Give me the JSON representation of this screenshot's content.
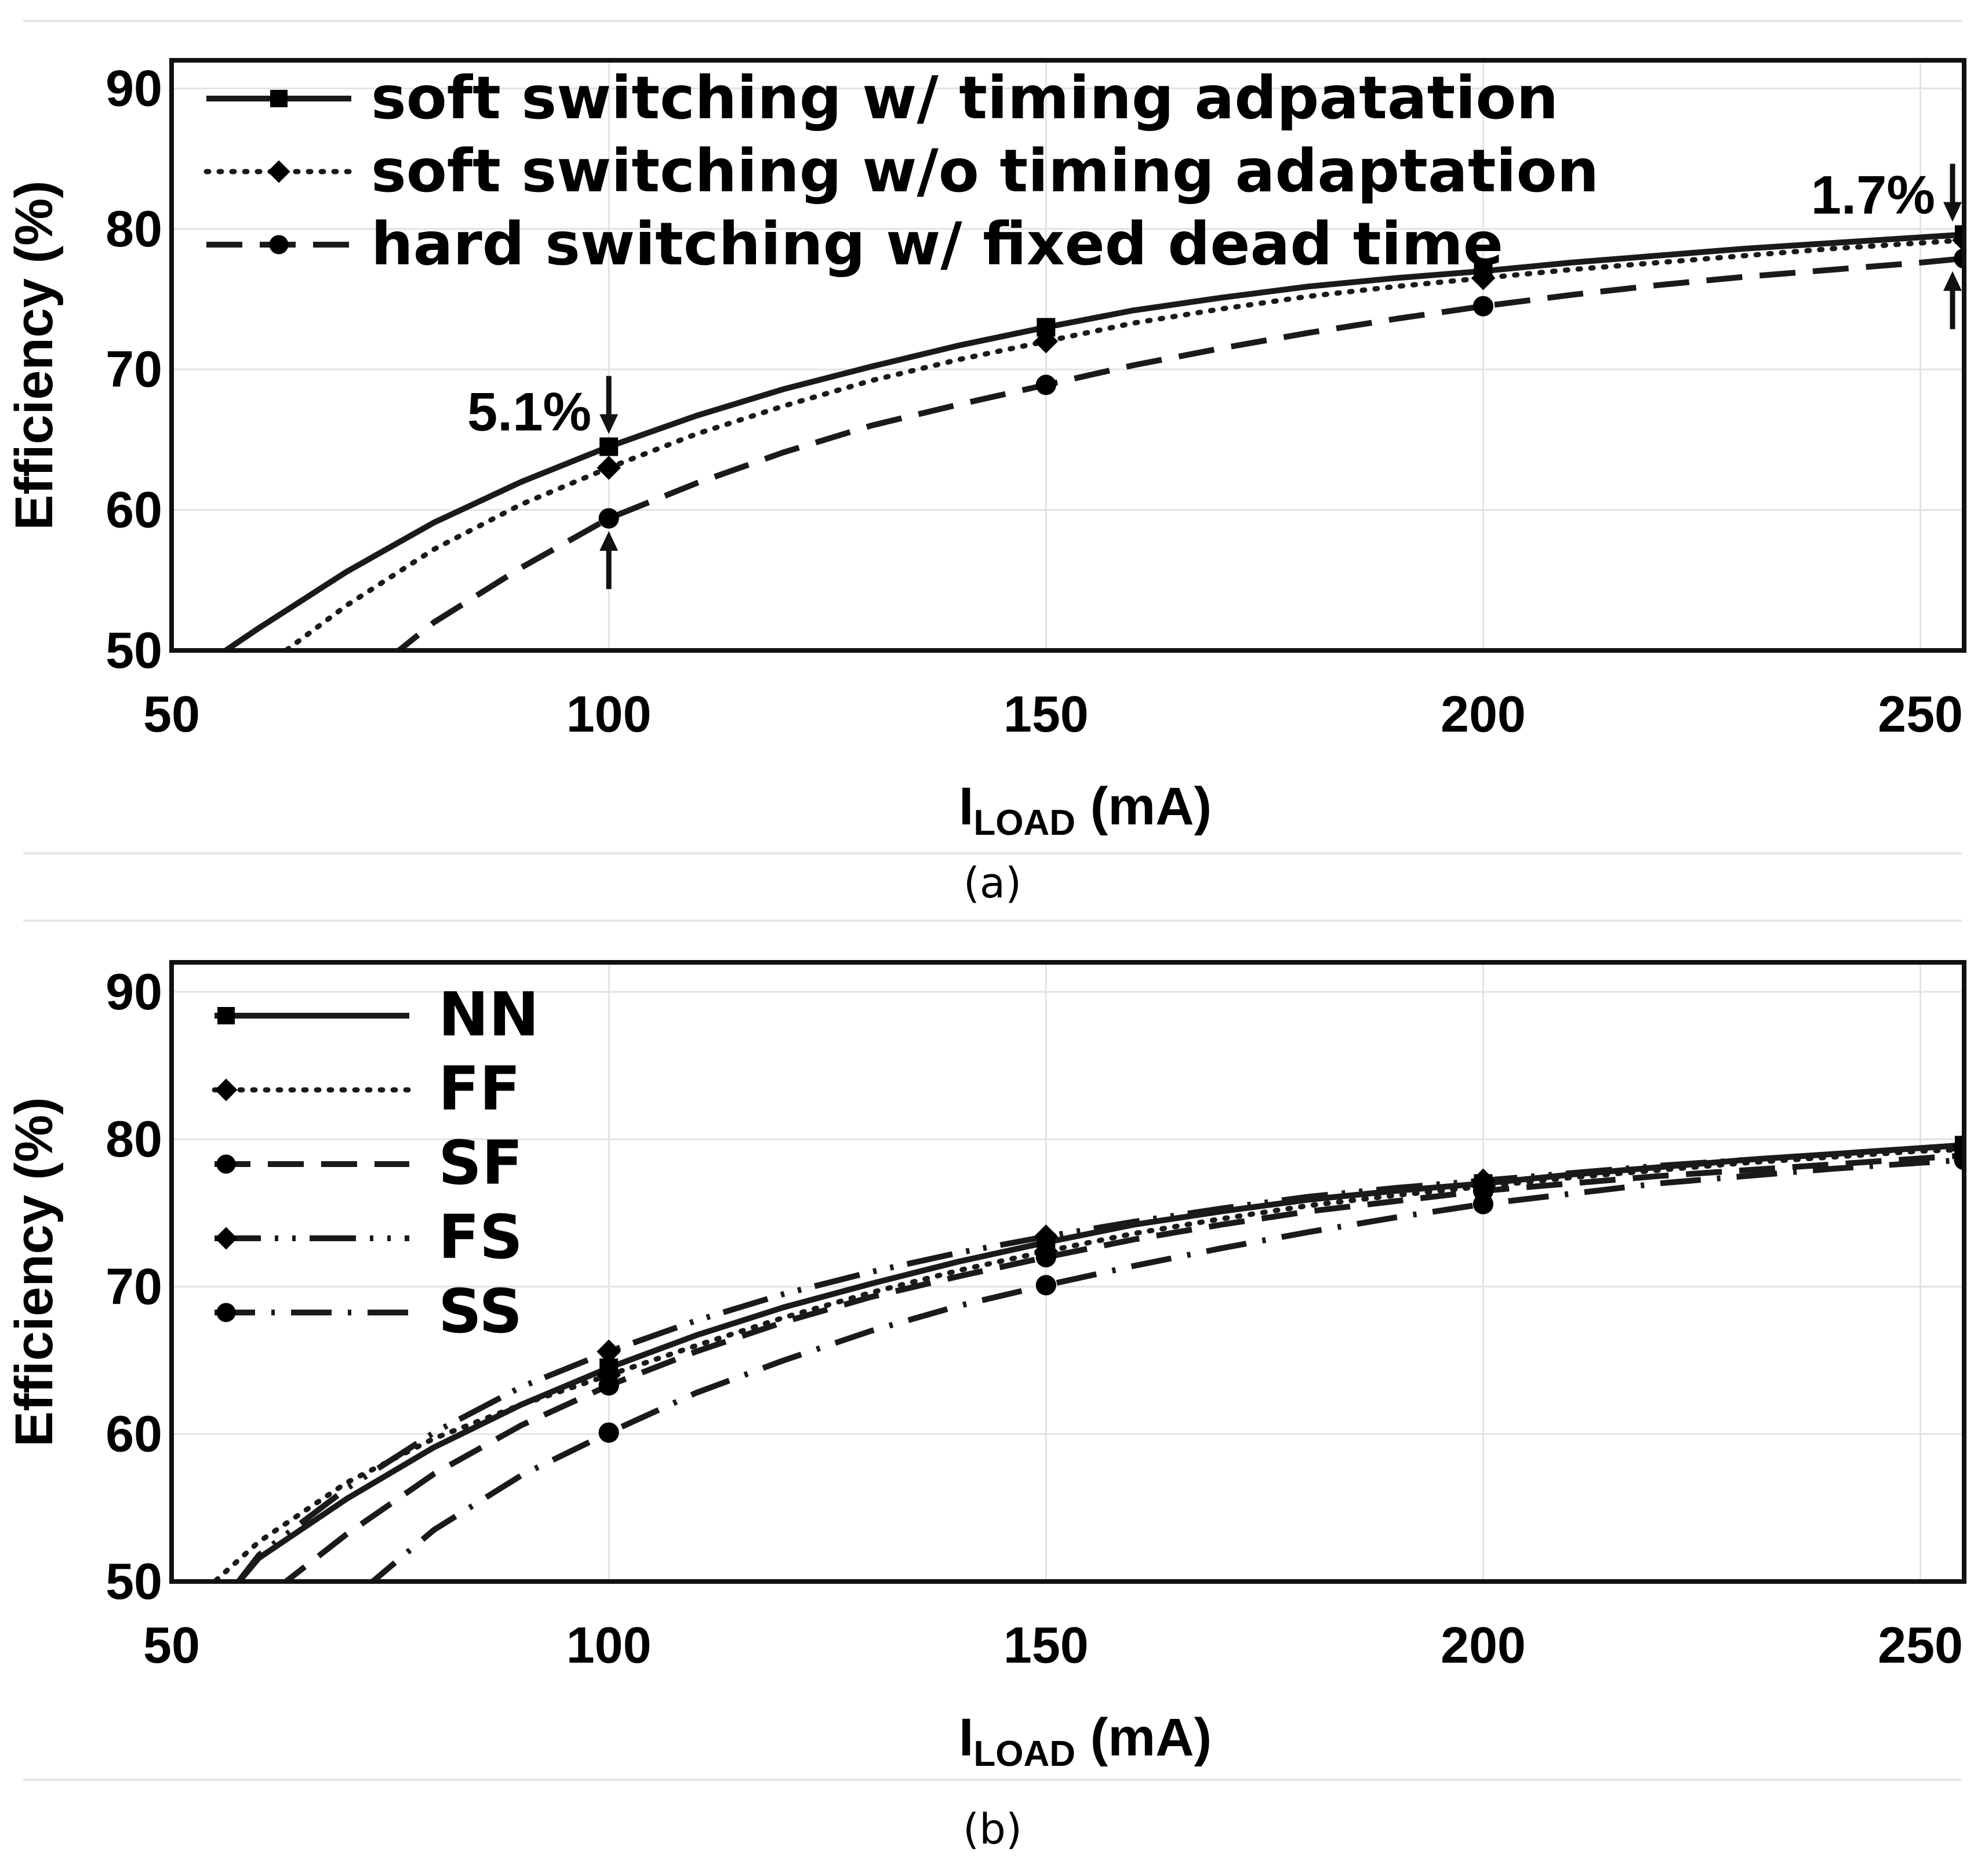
{
  "chart_data": [
    {
      "type": "line",
      "panel_label": "(a)",
      "xlabel_main": "I",
      "xlabel_sub": "LOAD",
      "xlabel_unit": " (mA)",
      "ylabel": "Efficiency (%)",
      "xlim": [
        50,
        255
      ],
      "ylim": [
        50,
        92
      ],
      "xticks": [
        "50",
        "100",
        "150",
        "200",
        "250"
      ],
      "xtick_values": [
        50,
        100,
        150,
        200,
        250
      ],
      "yticks": [
        "50",
        "60",
        "70",
        "80",
        "90"
      ],
      "ytick_values": [
        50,
        60,
        70,
        80,
        90
      ],
      "grid": true,
      "legend_position": "top-left",
      "series": [
        {
          "name": "soft switching w/ timing adpatation",
          "style": "solid",
          "marker": "square",
          "x": [
            55,
            60,
            70,
            80,
            90,
            100,
            110,
            120,
            130,
            140,
            150,
            160,
            170,
            180,
            190,
            200,
            210,
            220,
            230,
            240,
            250,
            255
          ],
          "y": [
            49.5,
            51.6,
            55.6,
            59.1,
            62.0,
            64.5,
            66.7,
            68.6,
            70.2,
            71.7,
            73.0,
            74.2,
            75.1,
            75.9,
            76.5,
            77.0,
            77.6,
            78.1,
            78.6,
            79.0,
            79.4,
            79.6
          ],
          "marker_x": [
            100,
            150,
            200,
            255
          ],
          "marker_y": [
            64.5,
            73.0,
            77.0,
            79.6
          ]
        },
        {
          "name": "soft switching w/o timing adaptation",
          "style": "dotted",
          "marker": "diamond",
          "x": [
            62,
            70,
            80,
            90,
            100,
            110,
            120,
            130,
            140,
            150,
            160,
            170,
            180,
            190,
            200,
            210,
            220,
            230,
            240,
            250,
            255
          ],
          "y": [
            49.5,
            53.2,
            57.2,
            60.4,
            63.0,
            65.4,
            67.4,
            69.2,
            70.7,
            72.0,
            73.3,
            74.3,
            75.2,
            75.9,
            76.5,
            77.1,
            77.6,
            78.1,
            78.6,
            79.0,
            79.2
          ],
          "marker_x": [
            100,
            150,
            200,
            255
          ],
          "marker_y": [
            63.0,
            72.0,
            76.5,
            79.2
          ]
        },
        {
          "name": "hard switching w/ fixed dead time",
          "style": "dashed",
          "marker": "circle",
          "x": [
            75,
            80,
            90,
            100,
            110,
            120,
            130,
            140,
            150,
            160,
            170,
            180,
            190,
            200,
            210,
            220,
            230,
            240,
            250,
            255
          ],
          "y": [
            49.5,
            52.0,
            55.9,
            59.4,
            61.9,
            64.1,
            66.0,
            67.5,
            68.9,
            70.3,
            71.5,
            72.6,
            73.6,
            74.5,
            75.3,
            76.0,
            76.6,
            77.1,
            77.6,
            77.9
          ],
          "marker_x": [
            100,
            150,
            200,
            255
          ],
          "marker_y": [
            59.4,
            68.9,
            74.5,
            77.9
          ]
        }
      ],
      "annotations": [
        {
          "text": "5.1%",
          "x": 100,
          "y_top": 64.5,
          "y_bottom": 59.4
        },
        {
          "text": "1.7%",
          "x": 255,
          "y_top": 79.6,
          "y_bottom": 77.9
        }
      ]
    },
    {
      "type": "line",
      "panel_label": "(b)",
      "xlabel_main": "I",
      "xlabel_sub": "LOAD",
      "xlabel_unit": " (mA)",
      "ylabel": "Efficiency (%)",
      "xlim": [
        50,
        255
      ],
      "ylim": [
        50,
        92
      ],
      "xticks": [
        "50",
        "100",
        "150",
        "200",
        "250"
      ],
      "xtick_values": [
        50,
        100,
        150,
        200,
        250
      ],
      "yticks": [
        "50",
        "60",
        "70",
        "80",
        "90"
      ],
      "ytick_values": [
        50,
        60,
        70,
        80,
        90
      ],
      "grid": true,
      "legend_position": "top-left",
      "series": [
        {
          "name": "NN",
          "style": "solid",
          "marker": "square",
          "x": [
            57,
            60,
            70,
            80,
            90,
            100,
            110,
            120,
            130,
            140,
            150,
            160,
            170,
            180,
            190,
            200,
            210,
            220,
            230,
            240,
            250,
            255
          ],
          "y": [
            49.5,
            51.6,
            55.6,
            59.1,
            62.0,
            64.5,
            66.7,
            68.6,
            70.2,
            71.7,
            73.0,
            74.2,
            75.1,
            75.9,
            76.5,
            77.0,
            77.6,
            78.1,
            78.6,
            79.0,
            79.4,
            79.6
          ],
          "marker_x": [
            100,
            150,
            200,
            255
          ],
          "marker_y": [
            64.5,
            73.0,
            77.0,
            79.6
          ]
        },
        {
          "name": "FF",
          "style": "dotted",
          "marker": "diamond",
          "x": [
            54,
            60,
            70,
            80,
            90,
            100,
            110,
            120,
            130,
            140,
            150,
            160,
            170,
            180,
            190,
            200,
            210,
            220,
            230,
            240,
            250,
            255
          ],
          "y": [
            49.5,
            52.7,
            56.7,
            59.7,
            62.0,
            64.0,
            66.0,
            67.9,
            69.6,
            71.1,
            72.4,
            73.6,
            74.6,
            75.5,
            76.2,
            76.8,
            77.4,
            77.9,
            78.4,
            78.8,
            79.2,
            79.3
          ],
          "marker_x": [
            100,
            150,
            200,
            255
          ],
          "marker_y": [
            64.0,
            72.4,
            76.8,
            79.3
          ]
        },
        {
          "name": "SF",
          "style": "dashed",
          "marker": "circle",
          "x": [
            62,
            70,
            80,
            90,
            100,
            110,
            120,
            130,
            140,
            150,
            160,
            170,
            180,
            190,
            200,
            210,
            220,
            230,
            240,
            250,
            255
          ],
          "y": [
            49.5,
            53.2,
            57.3,
            60.6,
            63.3,
            65.6,
            67.6,
            69.3,
            70.7,
            72.0,
            73.2,
            74.2,
            75.1,
            75.8,
            76.5,
            77.0,
            77.5,
            77.9,
            78.3,
            78.7,
            78.9
          ],
          "marker_x": [
            100,
            150,
            200,
            255
          ],
          "marker_y": [
            63.3,
            72.0,
            76.5,
            78.9
          ]
        },
        {
          "name": "FS",
          "style": "dash-dot-dot",
          "marker": "diamond",
          "x": [
            57,
            60,
            70,
            80,
            90,
            100,
            110,
            120,
            130,
            140,
            150,
            160,
            170,
            180,
            190,
            200,
            210,
            220,
            230,
            240,
            250,
            255
          ],
          "y": [
            49.5,
            51.8,
            56.3,
            60.1,
            63.2,
            65.6,
            67.7,
            69.5,
            71.0,
            72.3,
            73.4,
            74.4,
            75.3,
            76.1,
            76.7,
            77.2,
            77.7,
            78.2,
            78.6,
            79.0,
            79.4,
            79.6
          ],
          "marker_x": [
            100,
            150,
            200,
            255
          ],
          "marker_y": [
            65.6,
            73.4,
            77.2,
            79.6
          ]
        },
        {
          "name": "SS",
          "style": "dash-dot",
          "marker": "circle",
          "x": [
            72,
            80,
            90,
            100,
            110,
            120,
            130,
            140,
            150,
            160,
            170,
            180,
            190,
            200,
            210,
            220,
            230,
            240,
            250,
            255
          ],
          "y": [
            49.5,
            53.5,
            57.2,
            60.1,
            62.8,
            65.0,
            67.0,
            68.7,
            70.1,
            71.4,
            72.6,
            73.7,
            74.7,
            75.6,
            76.3,
            77.0,
            77.5,
            78.0,
            78.4,
            78.6
          ],
          "marker_x": [
            100,
            150,
            200,
            255
          ],
          "marker_y": [
            60.1,
            70.1,
            75.6,
            78.6
          ]
        }
      ]
    }
  ]
}
